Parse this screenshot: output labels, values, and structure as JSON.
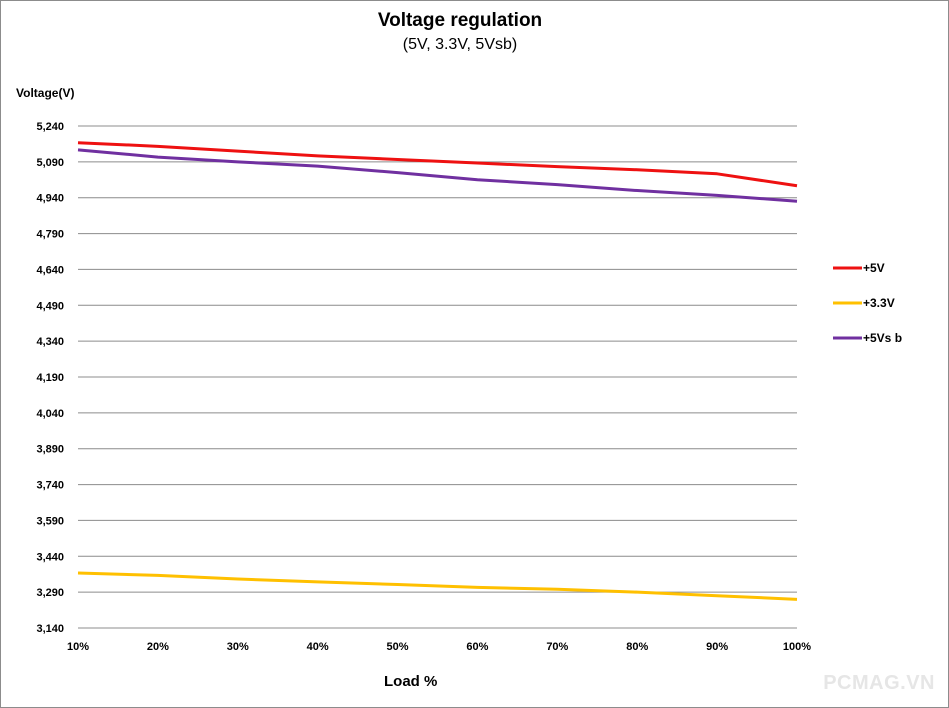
{
  "chart_data": {
    "type": "line",
    "title": "Voltage regulation",
    "subtitle": "(5V, 3.3V, 5Vsb)",
    "ylabel": "Voltage(V)",
    "xlabel": "Load %",
    "categories": [
      "10%",
      "20%",
      "30%",
      "40%",
      "50%",
      "60%",
      "70%",
      "80%",
      "90%",
      "100%"
    ],
    "yticks": [
      "5,240",
      "5,090",
      "4,940",
      "4,790",
      "4,640",
      "4,490",
      "4,340",
      "4,190",
      "4,040",
      "3,890",
      "3,740",
      "3,590",
      "3,440",
      "3,290",
      "3,140"
    ],
    "ylim": [
      3.14,
      5.24
    ],
    "grid": true,
    "legend_position": "right",
    "series": [
      {
        "name": "+5V",
        "color": "#ee1111",
        "values": [
          5.17,
          5.155,
          5.135,
          5.115,
          5.1,
          5.085,
          5.07,
          5.057,
          5.04,
          4.99
        ]
      },
      {
        "name": "+3.3V",
        "color": "#ffc000",
        "values": [
          3.37,
          3.36,
          3.345,
          3.333,
          3.322,
          3.31,
          3.302,
          3.29,
          3.275,
          3.26
        ]
      },
      {
        "name": "+5Vs b",
        "color": "#7030a0",
        "values": [
          5.14,
          5.11,
          5.09,
          5.072,
          5.045,
          5.015,
          4.995,
          4.97,
          4.95,
          4.925
        ]
      }
    ]
  },
  "watermark": "PCMAG.VN"
}
